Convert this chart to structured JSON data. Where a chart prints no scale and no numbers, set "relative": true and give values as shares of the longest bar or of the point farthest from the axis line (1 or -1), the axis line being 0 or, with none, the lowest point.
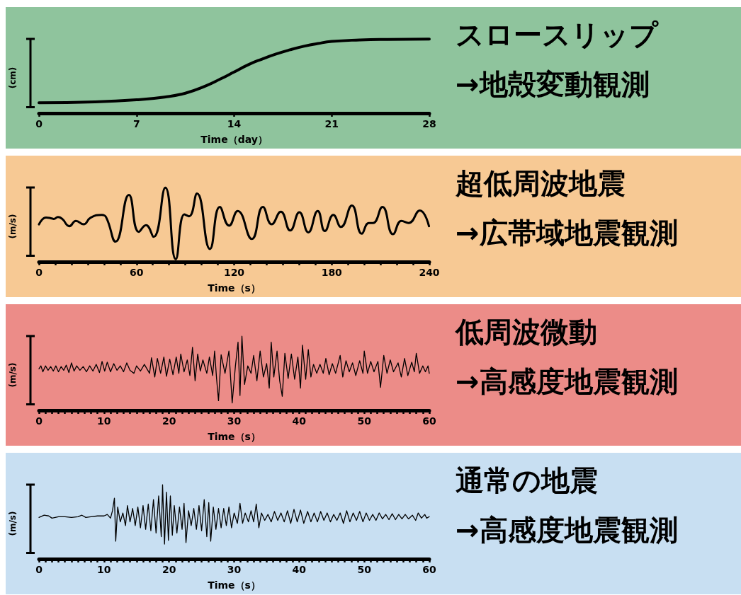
{
  "chart_data": [
    {
      "type": "line",
      "relative": true,
      "xlabel": "Time（day）",
      "ylabel": "(cm)",
      "marker": "none",
      "xlim": [
        0,
        28
      ],
      "xticks": [
        0,
        7,
        14,
        21,
        28
      ],
      "x": [
        0,
        4,
        7,
        9,
        10.5,
        12,
        13,
        14,
        15,
        16,
        17,
        18,
        19,
        20,
        21,
        23,
        25,
        28
      ],
      "series": [
        {
          "color": "#000000",
          "values": [
            0.141,
            0.153,
            0.181,
            0.218,
            0.27,
            0.371,
            0.46,
            0.556,
            0.653,
            0.73,
            0.798,
            0.855,
            0.903,
            0.94,
            0.968,
            0.988,
            0.996,
            1.0
          ]
        }
      ]
    },
    {
      "type": "other",
      "title": "スロースリップ",
      "subtitle": "→地殻変動観測"
    },
    {
      "type": "line",
      "relative": true,
      "xlabel": "Time（s）",
      "ylabel": "(m/s)",
      "marker": "none",
      "xlim": [
        0,
        240
      ],
      "xticks": [
        0,
        {
          "value": 10,
          "label": null
        },
        {
          "value": 20,
          "label": null
        },
        {
          "value": 30,
          "label": null
        },
        {
          "value": 40,
          "label": null
        },
        {
          "value": 50,
          "label": null
        },
        60,
        {
          "value": 70,
          "label": null
        },
        {
          "value": 80,
          "label": null
        },
        {
          "value": 90,
          "label": null
        },
        {
          "value": 100,
          "label": null
        },
        {
          "value": 110,
          "label": null
        },
        120,
        {
          "value": 130,
          "label": null
        },
        {
          "value": 140,
          "label": null
        },
        {
          "value": 150,
          "label": null
        },
        {
          "value": 160,
          "label": null
        },
        {
          "value": 170,
          "label": null
        },
        180,
        {
          "value": 190,
          "label": null
        },
        {
          "value": 200,
          "label": null
        },
        {
          "value": 210,
          "label": null
        },
        {
          "value": 220,
          "label": null
        },
        {
          "value": 230,
          "label": null
        },
        240
      ],
      "x": [
        0,
        4.4,
        7.3,
        9.1,
        11.7,
        14.3,
        18.7,
        22.7,
        27.4,
        31.8,
        38.7,
        41.4,
        47.1,
        55.3,
        61.4,
        65.8,
        70.5,
        77.7,
        84.1,
        89.4,
        92.3,
        97.2,
        105.1,
        111.2,
        116.9,
        122.2,
        130.9,
        137.7,
        143.1,
        148.7,
        154.5,
        160.1,
        165.6,
        171.4,
        175.8,
        181.0,
        185.7,
        192.4,
        198.5,
        202.8,
        205.4,
        211.2,
        217.7,
        222.9,
        227.3,
        234.2,
        239.8
      ],
      "series": [
        {
          "color": "#000000",
          "values": [
            0.505,
            0.596,
            0.588,
            0.578,
            0.603,
            0.578,
            0.48,
            0.552,
            0.505,
            0.596,
            0.632,
            0.596,
            0.271,
            0.903,
            0.404,
            0.495,
            0.336,
            1.0,
            0.036,
            0.639,
            0.614,
            0.921,
            0.173,
            0.74,
            0.487,
            0.686,
            0.307,
            0.74,
            0.505,
            0.675,
            0.422,
            0.668,
            0.397,
            0.686,
            0.415,
            0.632,
            0.469,
            0.758,
            0.379,
            0.523,
            0.523,
            0.74,
            0.372,
            0.552,
            0.523,
            0.693,
            0.48
          ]
        }
      ]
    },
    {
      "type": "other",
      "title": "超低周波地震",
      "subtitle": "→広帯域地震観測"
    },
    {
      "type": "line",
      "relative": true,
      "xlabel": "Time（s）",
      "ylabel": "(m/s)",
      "marker": "none",
      "xlim": [
        0,
        60
      ],
      "xticks": [
        0,
        {
          "value": 1,
          "label": null
        },
        {
          "value": 2,
          "label": null
        },
        {
          "value": 3,
          "label": null
        },
        {
          "value": 4,
          "label": null
        },
        {
          "value": 5,
          "label": null
        },
        {
          "value": 6,
          "label": null
        },
        {
          "value": 7,
          "label": null
        },
        {
          "value": 8,
          "label": null
        },
        {
          "value": 9,
          "label": null
        },
        10,
        {
          "value": 11,
          "label": null
        },
        {
          "value": 12,
          "label": null
        },
        {
          "value": 13,
          "label": null
        },
        {
          "value": 14,
          "label": null
        },
        {
          "value": 15,
          "label": null
        },
        {
          "value": 16,
          "label": null
        },
        {
          "value": 17,
          "label": null
        },
        {
          "value": 18,
          "label": null
        },
        {
          "value": 19,
          "label": null
        },
        20,
        {
          "value": 21,
          "label": null
        },
        {
          "value": 22,
          "label": null
        },
        {
          "value": 23,
          "label": null
        },
        {
          "value": 24,
          "label": null
        },
        {
          "value": 25,
          "label": null
        },
        {
          "value": 26,
          "label": null
        },
        {
          "value": 27,
          "label": null
        },
        {
          "value": 28,
          "label": null
        },
        {
          "value": 29,
          "label": null
        },
        30,
        {
          "value": 31,
          "label": null
        },
        {
          "value": 32,
          "label": null
        },
        {
          "value": 33,
          "label": null
        },
        {
          "value": 34,
          "label": null
        },
        {
          "value": 35,
          "label": null
        },
        {
          "value": 36,
          "label": null
        },
        {
          "value": 37,
          "label": null
        },
        {
          "value": 38,
          "label": null
        },
        {
          "value": 39,
          "label": null
        },
        40,
        {
          "value": 41,
          "label": null
        },
        {
          "value": 42,
          "label": null
        },
        {
          "value": 43,
          "label": null
        },
        {
          "value": 44,
          "label": null
        },
        {
          "value": 45,
          "label": null
        },
        {
          "value": 46,
          "label": null
        },
        {
          "value": 47,
          "label": null
        },
        {
          "value": 48,
          "label": null
        },
        {
          "value": 49,
          "label": null
        },
        50,
        {
          "value": 51,
          "label": null
        },
        {
          "value": 52,
          "label": null
        },
        {
          "value": 53,
          "label": null
        },
        {
          "value": 54,
          "label": null
        },
        {
          "value": 55,
          "label": null
        },
        {
          "value": 56,
          "label": null
        },
        {
          "value": 57,
          "label": null
        },
        {
          "value": 58,
          "label": null
        },
        {
          "value": 59,
          "label": null
        },
        60
      ],
      "x": [
        0,
        0.3,
        0.6,
        1,
        1.4,
        1.8,
        2.2,
        2.6,
        3,
        3.4,
        3.8,
        4.2,
        4.6,
        5,
        5.4,
        5.8,
        6.3,
        6.8,
        7.3,
        7.8,
        8.3,
        8.8,
        9.3,
        9.7,
        10.1,
        10.5,
        11,
        11.5,
        12,
        12.5,
        13,
        13.5,
        14,
        14.6,
        15,
        15.6,
        16.2,
        17,
        17.3,
        17.8,
        18.2,
        18.7,
        19.2,
        19.6,
        20.1,
        20.6,
        21.1,
        21.5,
        21.8,
        22.3,
        22.8,
        23.2,
        23.6,
        24,
        24.4,
        24.8,
        25.2,
        25.8,
        26.2,
        26.7,
        27,
        27.3,
        27.6,
        28,
        28.6,
        29.2,
        29.7,
        30.2,
        30.6,
        30.9,
        31.2,
        31.6,
        32.1,
        32.6,
        33,
        33.5,
        34,
        34.5,
        35,
        35.4,
        35.7,
        36.1,
        36.6,
        37,
        37.4,
        37.8,
        38.3,
        38.8,
        39.3,
        39.8,
        40.2,
        40.5,
        41,
        41.4,
        41.8,
        42.2,
        42.7,
        43.2,
        43.7,
        44.1,
        44.6,
        45.1,
        45.6,
        46.3,
        46.7,
        47.2,
        47.7,
        48.2,
        48.7,
        49.3,
        49.8,
        50,
        50.5,
        51,
        51.5,
        52.1,
        52.5,
        53,
        53.5,
        54,
        54.5,
        55.2,
        55.7,
        56.2,
        56.7,
        57.3,
        57.7,
        58,
        58.5,
        59,
        59.4,
        59.8,
        60
      ],
      "series": [
        {
          "color": "#000000",
          "values": [
            0.56,
            0.6,
            0.52,
            0.6,
            0.54,
            0.59,
            0.53,
            0.6,
            0.52,
            0.59,
            0.54,
            0.61,
            0.51,
            0.64,
            0.53,
            0.6,
            0.54,
            0.59,
            0.52,
            0.6,
            0.53,
            0.62,
            0.51,
            0.66,
            0.53,
            0.65,
            0.52,
            0.63,
            0.54,
            0.6,
            0.52,
            0.64,
            0.54,
            0.5,
            0.6,
            0.53,
            0.62,
            0.5,
            0.71,
            0.45,
            0.7,
            0.5,
            0.72,
            0.46,
            0.69,
            0.48,
            0.72,
            0.5,
            0.76,
            0.52,
            0.68,
            0.47,
            0.85,
            0.4,
            0.76,
            0.53,
            0.68,
            0.5,
            0.72,
            0.47,
            0.8,
            0.43,
            0.13,
            0.75,
            0.5,
            0.8,
            0.1,
            0.6,
            0.92,
            0.2,
            1.0,
            0.35,
            0.6,
            0.5,
            0.74,
            0.4,
            0.8,
            0.45,
            0.63,
            0.3,
            0.92,
            0.45,
            0.8,
            0.4,
            0.19,
            0.77,
            0.43,
            0.76,
            0.42,
            0.72,
            0.3,
            0.88,
            0.42,
            0.82,
            0.45,
            0.62,
            0.5,
            0.62,
            0.5,
            0.7,
            0.48,
            0.63,
            0.5,
            0.74,
            0.45,
            0.67,
            0.52,
            0.64,
            0.47,
            0.67,
            0.5,
            0.8,
            0.5,
            0.66,
            0.52,
            0.66,
            0.31,
            0.74,
            0.5,
            0.68,
            0.52,
            0.64,
            0.45,
            0.7,
            0.47,
            0.65,
            0.52,
            0.77,
            0.5,
            0.6,
            0.52,
            0.6,
            0.5
          ]
        }
      ]
    },
    {
      "type": "other",
      "title": "低周波微動",
      "subtitle": "→高感度地震観測"
    },
    {
      "type": "line",
      "relative": true,
      "xlabel": "Time（s）",
      "ylabel": "(m/s)",
      "marker": "none",
      "xlim": [
        0,
        60
      ],
      "xticks": [
        0,
        {
          "value": 1,
          "label": null
        },
        {
          "value": 2,
          "label": null
        },
        {
          "value": 3,
          "label": null
        },
        {
          "value": 4,
          "label": null
        },
        {
          "value": 5,
          "label": null
        },
        {
          "value": 6,
          "label": null
        },
        {
          "value": 7,
          "label": null
        },
        {
          "value": 8,
          "label": null
        },
        {
          "value": 9,
          "label": null
        },
        10,
        {
          "value": 11,
          "label": null
        },
        {
          "value": 12,
          "label": null
        },
        {
          "value": 13,
          "label": null
        },
        {
          "value": 14,
          "label": null
        },
        {
          "value": 15,
          "label": null
        },
        {
          "value": 16,
          "label": null
        },
        {
          "value": 17,
          "label": null
        },
        {
          "value": 18,
          "label": null
        },
        {
          "value": 19,
          "label": null
        },
        20,
        {
          "value": 21,
          "label": null
        },
        {
          "value": 22,
          "label": null
        },
        {
          "value": 23,
          "label": null
        },
        {
          "value": 24,
          "label": null
        },
        {
          "value": 25,
          "label": null
        },
        {
          "value": 26,
          "label": null
        },
        {
          "value": 27,
          "label": null
        },
        {
          "value": 28,
          "label": null
        },
        {
          "value": 29,
          "label": null
        },
        30,
        {
          "value": 31,
          "label": null
        },
        {
          "value": 32,
          "label": null
        },
        {
          "value": 33,
          "label": null
        },
        {
          "value": 34,
          "label": null
        },
        {
          "value": 35,
          "label": null
        },
        {
          "value": 36,
          "label": null
        },
        {
          "value": 37,
          "label": null
        },
        {
          "value": 38,
          "label": null
        },
        {
          "value": 39,
          "label": null
        },
        40,
        {
          "value": 41,
          "label": null
        },
        {
          "value": 42,
          "label": null
        },
        {
          "value": 43,
          "label": null
        },
        {
          "value": 44,
          "label": null
        },
        {
          "value": 45,
          "label": null
        },
        {
          "value": 46,
          "label": null
        },
        {
          "value": 47,
          "label": null
        },
        {
          "value": 48,
          "label": null
        },
        {
          "value": 49,
          "label": null
        },
        50,
        {
          "value": 51,
          "label": null
        },
        {
          "value": 52,
          "label": null
        },
        {
          "value": 53,
          "label": null
        },
        {
          "value": 54,
          "label": null
        },
        {
          "value": 55,
          "label": null
        },
        {
          "value": 56,
          "label": null
        },
        {
          "value": 57,
          "label": null
        },
        {
          "value": 58,
          "label": null
        },
        {
          "value": 59,
          "label": null
        },
        60
      ],
      "x": [
        0,
        0.8,
        1.5,
        2,
        3,
        4,
        5,
        6,
        6.6,
        7.2,
        8,
        9,
        10,
        10.5,
        11,
        11.3,
        11.6,
        11.8,
        12.1,
        12.5,
        12.9,
        13.3,
        13.6,
        14,
        14.4,
        14.8,
        15.2,
        15.6,
        16,
        16.4,
        16.8,
        17.2,
        17.6,
        18,
        18.4,
        18.8,
        19,
        19.3,
        19.6,
        19.9,
        20.2,
        20.5,
        20.8,
        21.2,
        21.6,
        22,
        22.3,
        22.6,
        23,
        23.4,
        23.8,
        24.2,
        24.6,
        25,
        25.4,
        25.8,
        26.1,
        26.4,
        26.8,
        27.2,
        27.6,
        28,
        28.4,
        28.8,
        29.2,
        29.6,
        30,
        30.5,
        30.9,
        31.3,
        31.7,
        32.2,
        32.6,
        33,
        33.4,
        33.8,
        34.2,
        34.7,
        35.2,
        35.7,
        36.2,
        36.7,
        37.2,
        37.7,
        38.2,
        38.7,
        39.2,
        39.7,
        40.2,
        40.7,
        41.3,
        41.8,
        42.3,
        42.8,
        43.3,
        43.8,
        44.3,
        44.8,
        45.3,
        45.8,
        46.3,
        46.8,
        47.3,
        47.8,
        48.3,
        48.8,
        49.3,
        49.8,
        50.3,
        50.8,
        51.3,
        51.8,
        52.3,
        52.8,
        53.3,
        53.8,
        54.3,
        54.8,
        55.3,
        55.8,
        56.3,
        56.8,
        57.4,
        57.9,
        58.3,
        58.8,
        59.3,
        59.6,
        60
      ],
      "series": [
        {
          "color": "#000000",
          "values": [
            0.56,
            0.59,
            0.58,
            0.55,
            0.57,
            0.57,
            0.56,
            0.57,
            0.59,
            0.56,
            0.57,
            0.58,
            0.58,
            0.6,
            0.55,
            0.65,
            0.82,
            0.24,
            0.7,
            0.5,
            0.62,
            0.45,
            0.72,
            0.5,
            0.68,
            0.45,
            0.7,
            0.42,
            0.72,
            0.4,
            0.74,
            0.38,
            0.8,
            0.35,
            0.85,
            0.3,
            1.0,
            0.2,
            0.9,
            0.25,
            0.85,
            0.32,
            0.72,
            0.35,
            0.7,
            0.4,
            0.75,
            0.22,
            0.65,
            0.45,
            0.68,
            0.4,
            0.72,
            0.38,
            0.8,
            0.3,
            0.76,
            0.24,
            0.7,
            0.4,
            0.68,
            0.42,
            0.68,
            0.45,
            0.7,
            0.42,
            0.62,
            0.48,
            0.75,
            0.48,
            0.62,
            0.5,
            0.65,
            0.5,
            0.74,
            0.42,
            0.62,
            0.52,
            0.6,
            0.5,
            0.64,
            0.52,
            0.62,
            0.5,
            0.65,
            0.48,
            0.67,
            0.5,
            0.66,
            0.48,
            0.64,
            0.5,
            0.62,
            0.5,
            0.64,
            0.52,
            0.62,
            0.5,
            0.6,
            0.52,
            0.62,
            0.48,
            0.65,
            0.5,
            0.62,
            0.52,
            0.64,
            0.5,
            0.62,
            0.52,
            0.6,
            0.52,
            0.62,
            0.54,
            0.6,
            0.53,
            0.61,
            0.53,
            0.6,
            0.54,
            0.6,
            0.54,
            0.59,
            0.52,
            0.62,
            0.55,
            0.6,
            0.55,
            0.57
          ]
        }
      ]
    },
    {
      "type": "other",
      "title": "通常の地震",
      "subtitle": "→高感度地震観測"
    }
  ]
}
